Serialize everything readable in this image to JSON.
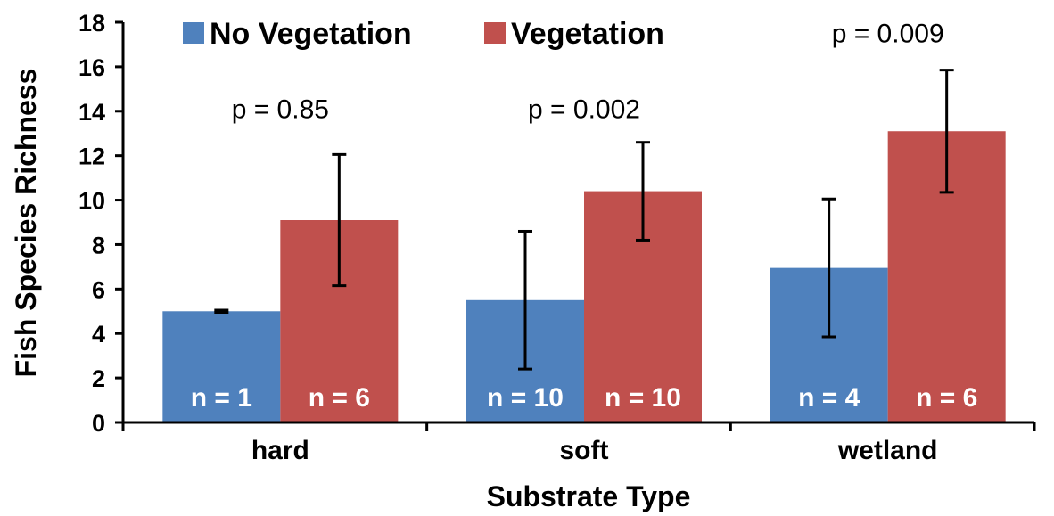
{
  "chart_data": {
    "type": "bar",
    "xlabel": "Substrate Type",
    "ylabel": "Fish Species Richness",
    "ylim": [
      0,
      18
    ],
    "yticks": [
      0,
      2,
      4,
      6,
      8,
      10,
      12,
      14,
      16,
      18
    ],
    "grid": false,
    "legend_position": "top-left",
    "categories": [
      "hard",
      "soft",
      "wetland"
    ],
    "series": [
      {
        "name": "No Vegetation",
        "color": "#4f81bd",
        "values": [
          5.0,
          5.5,
          6.95
        ],
        "error": [
          0.05,
          3.1,
          3.1
        ],
        "n_labels": [
          "n = 1",
          "n = 10",
          "n = 4"
        ]
      },
      {
        "name": "Vegetation",
        "color": "#c0504d",
        "values": [
          9.1,
          10.4,
          13.1
        ],
        "error": [
          2.95,
          2.2,
          2.75
        ],
        "n_labels": [
          "n = 6",
          "n = 10",
          "n = 6"
        ]
      }
    ],
    "annotations": [
      {
        "category": "hard",
        "text": "p = 0.85",
        "y": 13.7
      },
      {
        "category": "soft",
        "text": "p = 0.002",
        "y": 13.7
      },
      {
        "category": "wetland",
        "text": "p = 0.009",
        "y": 17.1
      }
    ]
  }
}
